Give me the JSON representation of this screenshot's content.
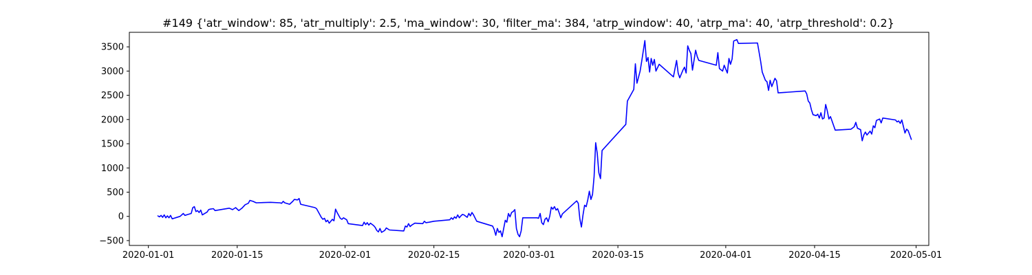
{
  "chart_data": {
    "type": "line",
    "title": "#149 {'atr_window': 85, 'atr_multiply': 2.5, 'ma_window': 30, 'filter_ma': 384, 'atrp_window': 40, 'atrp_ma': 40, 'atrp_threshold': 0.2}",
    "xlabel": "",
    "ylabel": "",
    "xlim": [
      "2019-12-29",
      "2020-05-03"
    ],
    "ylim": [
      -600,
      3800
    ],
    "grid": false,
    "x_ticks": [
      "2020-01-01",
      "2020-01-15",
      "2020-02-01",
      "2020-02-15",
      "2020-03-01",
      "2020-03-15",
      "2020-04-01",
      "2020-04-15",
      "2020-05-01"
    ],
    "y_ticks": [
      -500,
      0,
      500,
      1000,
      1500,
      2000,
      2500,
      3000,
      3500
    ],
    "series": [
      {
        "color": "#0000ff",
        "points": [
          [
            "2020-01-02 12:00",
            10
          ],
          [
            "2020-01-02 18:00",
            -10
          ],
          [
            "2020-01-03 00:00",
            20
          ],
          [
            "2020-01-03 06:00",
            -20
          ],
          [
            "2020-01-03 12:00",
            30
          ],
          [
            "2020-01-03 18:00",
            -30
          ],
          [
            "2020-01-04 00:00",
            10
          ],
          [
            "2020-01-04 06:00",
            -30
          ],
          [
            "2020-01-04 12:00",
            20
          ],
          [
            "2020-01-04 18:00",
            -50
          ],
          [
            "2020-01-06 00:00",
            0
          ],
          [
            "2020-01-06 12:00",
            60
          ],
          [
            "2020-01-06 18:00",
            20
          ],
          [
            "2020-01-07 06:00",
            40
          ],
          [
            "2020-01-07 18:00",
            60
          ],
          [
            "2020-01-08 00:00",
            180
          ],
          [
            "2020-01-08 06:00",
            200
          ],
          [
            "2020-01-08 12:00",
            100
          ],
          [
            "2020-01-08 18:00",
            120
          ],
          [
            "2020-01-09 00:00",
            80
          ],
          [
            "2020-01-09 06:00",
            130
          ],
          [
            "2020-01-09 12:00",
            30
          ],
          [
            "2020-01-09 18:00",
            50
          ],
          [
            "2020-01-10 06:00",
            90
          ],
          [
            "2020-01-10 12:00",
            140
          ],
          [
            "2020-01-10 18:00",
            150
          ],
          [
            "2020-01-11 06:00",
            160
          ],
          [
            "2020-01-11 12:00",
            120
          ],
          [
            "2020-01-13 18:00",
            170
          ],
          [
            "2020-01-14 06:00",
            140
          ],
          [
            "2020-01-14 12:00",
            160
          ],
          [
            "2020-01-14 18:00",
            180
          ],
          [
            "2020-01-15 06:00",
            120
          ],
          [
            "2020-01-15 18:00",
            170
          ],
          [
            "2020-01-16 06:00",
            240
          ],
          [
            "2020-01-16 18:00",
            270
          ],
          [
            "2020-01-17 00:00",
            330
          ],
          [
            "2020-01-17 12:00",
            310
          ],
          [
            "2020-01-18 00:00",
            280
          ],
          [
            "2020-01-20 06:00",
            290
          ],
          [
            "2020-01-21 18:00",
            280
          ],
          [
            "2020-01-22 00:00",
            270
          ],
          [
            "2020-01-22 06:00",
            310
          ],
          [
            "2020-01-22 12:00",
            280
          ],
          [
            "2020-01-23 06:00",
            250
          ],
          [
            "2020-01-23 18:00",
            310
          ],
          [
            "2020-01-24 00:00",
            350
          ],
          [
            "2020-01-24 12:00",
            340
          ],
          [
            "2020-01-24 18:00",
            370
          ],
          [
            "2020-01-25 00:00",
            250
          ],
          [
            "2020-01-27 06:00",
            180
          ],
          [
            "2020-01-27 12:00",
            160
          ],
          [
            "2020-01-28 00:00",
            40
          ],
          [
            "2020-01-28 06:00",
            -20
          ],
          [
            "2020-01-28 12:00",
            -60
          ],
          [
            "2020-01-28 18:00",
            -40
          ],
          [
            "2020-01-29 00:00",
            -110
          ],
          [
            "2020-01-29 06:00",
            -80
          ],
          [
            "2020-01-29 12:00",
            -140
          ],
          [
            "2020-01-30 00:00",
            -60
          ],
          [
            "2020-01-30 06:00",
            -90
          ],
          [
            "2020-01-30 12:00",
            150
          ],
          [
            "2020-01-30 18:00",
            80
          ],
          [
            "2020-01-31 06:00",
            -40
          ],
          [
            "2020-01-31 12:00",
            -60
          ],
          [
            "2020-01-31 18:00",
            -30
          ],
          [
            "2020-02-01 06:00",
            -70
          ],
          [
            "2020-02-01 12:00",
            -150
          ],
          [
            "2020-02-03 18:00",
            -190
          ],
          [
            "2020-02-04 00:00",
            -120
          ],
          [
            "2020-02-04 06:00",
            -170
          ],
          [
            "2020-02-04 12:00",
            -130
          ],
          [
            "2020-02-04 18:00",
            -180
          ],
          [
            "2020-02-05 00:00",
            -140
          ],
          [
            "2020-02-05 12:00",
            -190
          ],
          [
            "2020-02-05 18:00",
            -230
          ],
          [
            "2020-02-06 00:00",
            -290
          ],
          [
            "2020-02-06 06:00",
            -320
          ],
          [
            "2020-02-06 12:00",
            -250
          ],
          [
            "2020-02-06 18:00",
            -330
          ],
          [
            "2020-02-07 06:00",
            -290
          ],
          [
            "2020-02-07 12:00",
            -240
          ],
          [
            "2020-02-08 00:00",
            -280
          ],
          [
            "2020-02-10 06:00",
            -300
          ],
          [
            "2020-02-10 12:00",
            -200
          ],
          [
            "2020-02-10 18:00",
            -220
          ],
          [
            "2020-02-11 00:00",
            -150
          ],
          [
            "2020-02-11 06:00",
            -210
          ],
          [
            "2020-02-11 12:00",
            -180
          ],
          [
            "2020-02-12 00:00",
            -140
          ],
          [
            "2020-02-13 06:00",
            -150
          ],
          [
            "2020-02-13 12:00",
            -100
          ],
          [
            "2020-02-13 18:00",
            -130
          ],
          [
            "2020-02-14 06:00",
            -120
          ],
          [
            "2020-02-15 00:00",
            -100
          ],
          [
            "2020-02-17 12:00",
            -70
          ],
          [
            "2020-02-17 18:00",
            -30
          ],
          [
            "2020-02-18 00:00",
            -60
          ],
          [
            "2020-02-18 06:00",
            -10
          ],
          [
            "2020-02-18 12:00",
            -40
          ],
          [
            "2020-02-18 18:00",
            30
          ],
          [
            "2020-02-19 00:00",
            -30
          ],
          [
            "2020-02-19 06:00",
            10
          ],
          [
            "2020-02-19 12:00",
            40
          ],
          [
            "2020-02-19 18:00",
            30
          ],
          [
            "2020-02-20 06:00",
            -20
          ],
          [
            "2020-02-20 12:00",
            60
          ],
          [
            "2020-02-20 18:00",
            10
          ],
          [
            "2020-02-21 00:00",
            80
          ],
          [
            "2020-02-21 06:00",
            30
          ],
          [
            "2020-02-21 18:00",
            -100
          ],
          [
            "2020-02-24 06:00",
            -200
          ],
          [
            "2020-02-24 12:00",
            -270
          ],
          [
            "2020-02-24 18:00",
            -390
          ],
          [
            "2020-02-25 00:00",
            -250
          ],
          [
            "2020-02-25 06:00",
            -330
          ],
          [
            "2020-02-25 12:00",
            -300
          ],
          [
            "2020-02-25 18:00",
            -420
          ],
          [
            "2020-02-26 06:00",
            -80
          ],
          [
            "2020-02-26 12:00",
            -120
          ],
          [
            "2020-02-26 18:00",
            60
          ],
          [
            "2020-02-27 00:00",
            -10
          ],
          [
            "2020-02-27 06:00",
            80
          ],
          [
            "2020-02-27 12:00",
            100
          ],
          [
            "2020-02-27 18:00",
            140
          ],
          [
            "2020-02-28 00:00",
            -250
          ],
          [
            "2020-02-28 06:00",
            -370
          ],
          [
            "2020-02-28 12:00",
            -420
          ],
          [
            "2020-02-28 18:00",
            -300
          ],
          [
            "2020-02-29 00:00",
            -30
          ],
          [
            "2020-03-02 06:00",
            -30
          ],
          [
            "2020-03-02 12:00",
            -40
          ],
          [
            "2020-03-02 18:00",
            60
          ],
          [
            "2020-03-03 00:00",
            -130
          ],
          [
            "2020-03-03 06:00",
            -170
          ],
          [
            "2020-03-03 12:00",
            -60
          ],
          [
            "2020-03-03 18:00",
            -30
          ],
          [
            "2020-03-04 00:00",
            -110
          ],
          [
            "2020-03-04 06:00",
            0
          ],
          [
            "2020-03-04 12:00",
            190
          ],
          [
            "2020-03-04 18:00",
            150
          ],
          [
            "2020-03-05 00:00",
            200
          ],
          [
            "2020-03-05 06:00",
            130
          ],
          [
            "2020-03-05 12:00",
            160
          ],
          [
            "2020-03-05 18:00",
            70
          ],
          [
            "2020-03-06 00:00",
            -30
          ],
          [
            "2020-03-06 06:00",
            50
          ],
          [
            "2020-03-08 12:00",
            320
          ],
          [
            "2020-03-08 18:00",
            270
          ],
          [
            "2020-03-09 00:00",
            -50
          ],
          [
            "2020-03-09 06:00",
            -220
          ],
          [
            "2020-03-09 12:00",
            30
          ],
          [
            "2020-03-09 18:00",
            230
          ],
          [
            "2020-03-10 00:00",
            200
          ],
          [
            "2020-03-10 06:00",
            340
          ],
          [
            "2020-03-10 12:00",
            520
          ],
          [
            "2020-03-10 18:00",
            350
          ],
          [
            "2020-03-11 00:00",
            450
          ],
          [
            "2020-03-11 06:00",
            820
          ],
          [
            "2020-03-11 12:00",
            1520
          ],
          [
            "2020-03-11 18:00",
            1300
          ],
          [
            "2020-03-12 00:00",
            900
          ],
          [
            "2020-03-12 06:00",
            780
          ],
          [
            "2020-03-12 12:00",
            1360
          ],
          [
            "2020-03-16 06:00",
            1900
          ],
          [
            "2020-03-16 12:00",
            2380
          ],
          [
            "2020-03-17 12:00",
            2620
          ],
          [
            "2020-03-17 18:00",
            3150
          ],
          [
            "2020-03-18 00:00",
            2750
          ],
          [
            "2020-03-18 12:00",
            3000
          ],
          [
            "2020-03-18 18:00",
            3200
          ],
          [
            "2020-03-19 06:00",
            3630
          ],
          [
            "2020-03-19 12:00",
            3200
          ],
          [
            "2020-03-19 18:00",
            3280
          ],
          [
            "2020-03-20 00:00",
            2980
          ],
          [
            "2020-03-20 06:00",
            3260
          ],
          [
            "2020-03-20 12:00",
            3120
          ],
          [
            "2020-03-20 18:00",
            3240
          ],
          [
            "2020-03-21 00:00",
            3000
          ],
          [
            "2020-03-21 12:00",
            3140
          ],
          [
            "2020-03-23 18:00",
            2880
          ],
          [
            "2020-03-24 06:00",
            3220
          ],
          [
            "2020-03-24 12:00",
            2960
          ],
          [
            "2020-03-24 18:00",
            2860
          ],
          [
            "2020-03-25 06:00",
            3020
          ],
          [
            "2020-03-25 12:00",
            3080
          ],
          [
            "2020-03-25 18:00",
            2960
          ],
          [
            "2020-03-26 00:00",
            3520
          ],
          [
            "2020-03-26 06:00",
            3430
          ],
          [
            "2020-03-26 12:00",
            3360
          ],
          [
            "2020-03-26 18:00",
            3020
          ],
          [
            "2020-03-27 06:00",
            3430
          ],
          [
            "2020-03-27 12:00",
            3300
          ],
          [
            "2020-03-27 18:00",
            3220
          ],
          [
            "2020-03-30 12:00",
            3120
          ],
          [
            "2020-03-30 18:00",
            3380
          ],
          [
            "2020-03-31 00:00",
            3050
          ],
          [
            "2020-03-31 12:00",
            3000
          ],
          [
            "2020-03-31 18:00",
            3120
          ],
          [
            "2020-04-01 06:00",
            2960
          ],
          [
            "2020-04-01 12:00",
            3260
          ],
          [
            "2020-04-01 18:00",
            3140
          ],
          [
            "2020-04-02 00:00",
            3250
          ],
          [
            "2020-04-02 06:00",
            3620
          ],
          [
            "2020-04-02 18:00",
            3650
          ],
          [
            "2020-04-03 00:00",
            3570
          ],
          [
            "2020-04-06 00:00",
            3580
          ],
          [
            "2020-04-06 12:00",
            3200
          ],
          [
            "2020-04-06 18:00",
            2980
          ],
          [
            "2020-04-07 06:00",
            2810
          ],
          [
            "2020-04-07 12:00",
            2780
          ],
          [
            "2020-04-07 18:00",
            2600
          ],
          [
            "2020-04-08 00:00",
            2810
          ],
          [
            "2020-04-08 06:00",
            2680
          ],
          [
            "2020-04-08 18:00",
            2850
          ],
          [
            "2020-04-09 00:00",
            2800
          ],
          [
            "2020-04-09 06:00",
            2550
          ],
          [
            "2020-04-13 12:00",
            2590
          ],
          [
            "2020-04-13 18:00",
            2530
          ],
          [
            "2020-04-14 00:00",
            2380
          ],
          [
            "2020-04-14 06:00",
            2340
          ],
          [
            "2020-04-14 12:00",
            2200
          ],
          [
            "2020-04-14 18:00",
            2100
          ],
          [
            "2020-04-15 06:00",
            2080
          ],
          [
            "2020-04-15 12:00",
            2110
          ],
          [
            "2020-04-15 18:00",
            2030
          ],
          [
            "2020-04-16 00:00",
            2140
          ],
          [
            "2020-04-16 06:00",
            2010
          ],
          [
            "2020-04-16 12:00",
            2030
          ],
          [
            "2020-04-16 18:00",
            2310
          ],
          [
            "2020-04-17 00:00",
            2180
          ],
          [
            "2020-04-17 06:00",
            2010
          ],
          [
            "2020-04-17 12:00",
            2060
          ],
          [
            "2020-04-18 06:00",
            1780
          ],
          [
            "2020-04-20 18:00",
            1800
          ],
          [
            "2020-04-21 06:00",
            1850
          ],
          [
            "2020-04-21 12:00",
            1940
          ],
          [
            "2020-04-21 18:00",
            1820
          ],
          [
            "2020-04-22 06:00",
            1790
          ],
          [
            "2020-04-22 12:00",
            1560
          ],
          [
            "2020-04-22 18:00",
            1680
          ],
          [
            "2020-04-23 00:00",
            1740
          ],
          [
            "2020-04-23 06:00",
            1680
          ],
          [
            "2020-04-23 18:00",
            1760
          ],
          [
            "2020-04-24 00:00",
            1700
          ],
          [
            "2020-04-24 06:00",
            1870
          ],
          [
            "2020-04-24 12:00",
            1830
          ],
          [
            "2020-04-24 18:00",
            1980
          ],
          [
            "2020-04-25 06:00",
            2010
          ],
          [
            "2020-04-25 12:00",
            1930
          ],
          [
            "2020-04-25 18:00",
            2030
          ],
          [
            "2020-04-27 18:00",
            1990
          ],
          [
            "2020-04-28 00:00",
            1950
          ],
          [
            "2020-04-28 06:00",
            1970
          ],
          [
            "2020-04-28 12:00",
            1920
          ],
          [
            "2020-04-28 18:00",
            1990
          ],
          [
            "2020-04-29 06:00",
            1720
          ],
          [
            "2020-04-29 12:00",
            1800
          ],
          [
            "2020-04-29 18:00",
            1770
          ],
          [
            "2020-04-30 06:00",
            1590
          ]
        ]
      }
    ]
  }
}
